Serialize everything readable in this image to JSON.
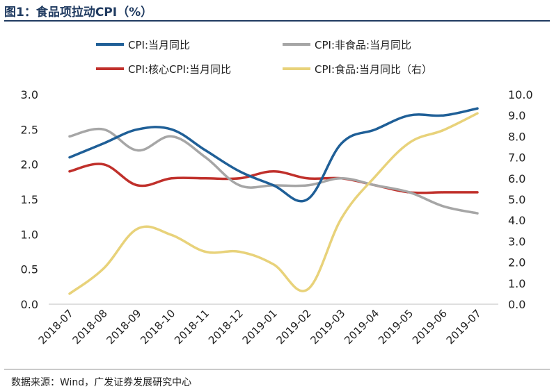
{
  "title": "图1：食品项拉动CPI（%）",
  "source": "数据来源：Wind，广发证券发展研究中心",
  "chart_data": {
    "type": "line",
    "categories": [
      "2018-07",
      "2018-08",
      "2018-09",
      "2018-10",
      "2018-11",
      "2018-12",
      "2019-01",
      "2019-02",
      "2019-03",
      "2019-04",
      "2019-05",
      "2019-06",
      "2019-07"
    ],
    "left_axis": {
      "ylim": [
        0,
        3
      ],
      "ticks": [
        "0.0",
        "0.5",
        "1.0",
        "1.5",
        "2.0",
        "2.5",
        "3.0"
      ],
      "tick_values": [
        0,
        0.5,
        1,
        1.5,
        2,
        2.5,
        3
      ]
    },
    "right_axis": {
      "ylim": [
        0,
        10
      ],
      "ticks": [
        "0.0",
        "1.0",
        "2.0",
        "3.0",
        "4.0",
        "5.0",
        "6.0",
        "7.0",
        "8.0",
        "9.0",
        "10.0"
      ],
      "tick_values": [
        0,
        1,
        2,
        3,
        4,
        5,
        6,
        7,
        8,
        9,
        10
      ]
    },
    "series": [
      {
        "name": "CPI:当月同比",
        "axis": "left",
        "color": "#1f5f97",
        "values": [
          2.1,
          2.3,
          2.5,
          2.5,
          2.2,
          1.9,
          1.7,
          1.5,
          2.3,
          2.5,
          2.7,
          2.7,
          2.8
        ]
      },
      {
        "name": "CPI:非食品:当月同比",
        "axis": "left",
        "color": "#a6a6a6",
        "values": [
          2.4,
          2.5,
          2.2,
          2.4,
          2.1,
          1.7,
          1.7,
          1.7,
          1.8,
          1.7,
          1.6,
          1.4,
          1.3
        ]
      },
      {
        "name": "CPI:核心CPI:当月同比",
        "axis": "left",
        "color": "#c0302b",
        "values": [
          1.9,
          2.0,
          1.7,
          1.8,
          1.8,
          1.8,
          1.9,
          1.8,
          1.8,
          1.7,
          1.6,
          1.6,
          1.6
        ]
      },
      {
        "name": "CPI:食品:当月同比（右）",
        "axis": "right",
        "color": "#e8d27a",
        "values": [
          0.5,
          1.7,
          3.6,
          3.3,
          2.5,
          2.5,
          1.9,
          0.7,
          4.1,
          6.1,
          7.7,
          8.3,
          9.1
        ]
      }
    ],
    "legend_position": "top"
  }
}
